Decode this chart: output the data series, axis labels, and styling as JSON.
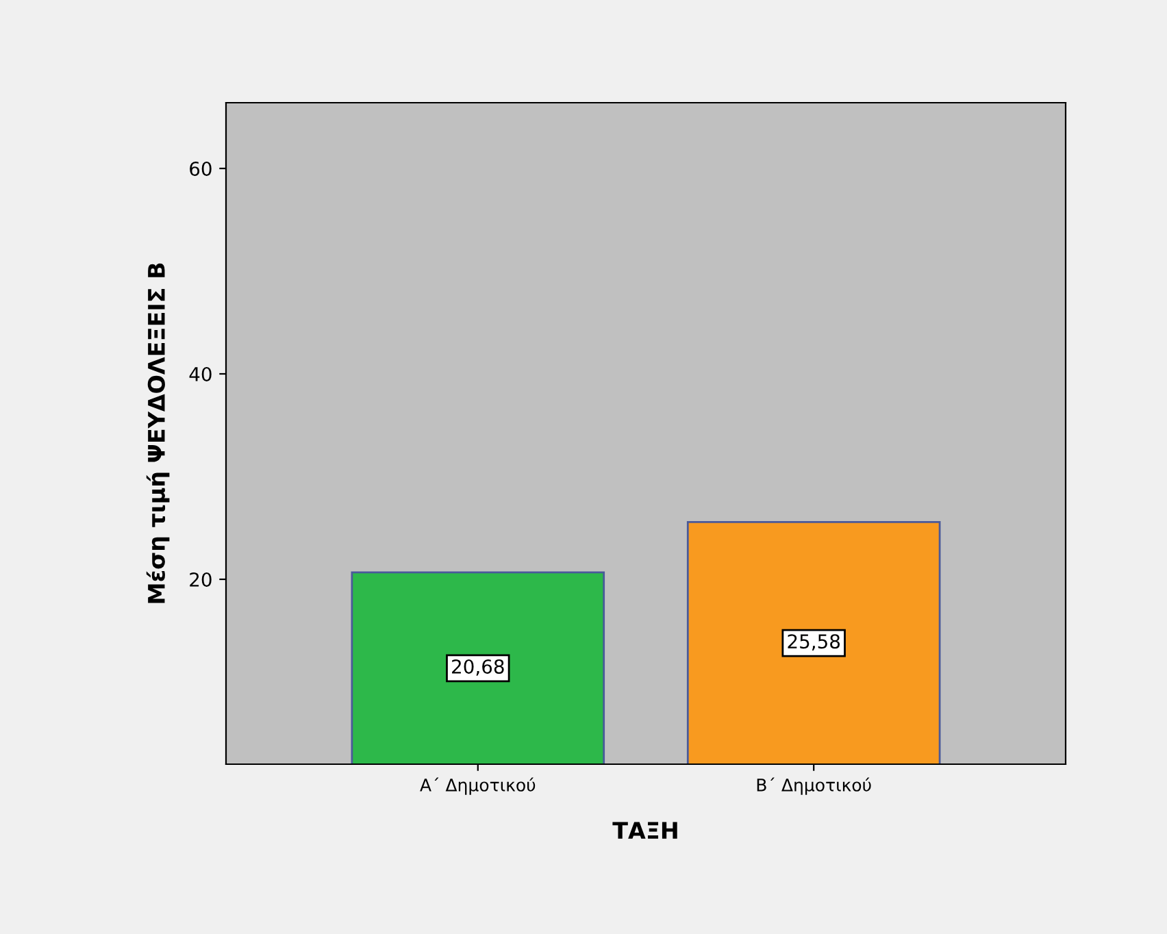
{
  "chart_data": {
    "type": "bar",
    "xlabel": "ΤΑΞΗ",
    "ylabel": "Μέση τιμή ΨΕΥΔΟΛΕΞΕΙΣ Β",
    "categories": [
      "Α΄ Δημοτικού",
      "Β΄ Δημοτικού"
    ],
    "values": [
      20.68,
      25.58
    ],
    "colors": [
      "#2db84a",
      "#f89a1f"
    ],
    "value_labels": [
      "20,68",
      "25,58"
    ],
    "ylim": [
      2,
      66.4
    ],
    "yticks": [
      20,
      40,
      60
    ],
    "grid": false,
    "legend": false
  }
}
